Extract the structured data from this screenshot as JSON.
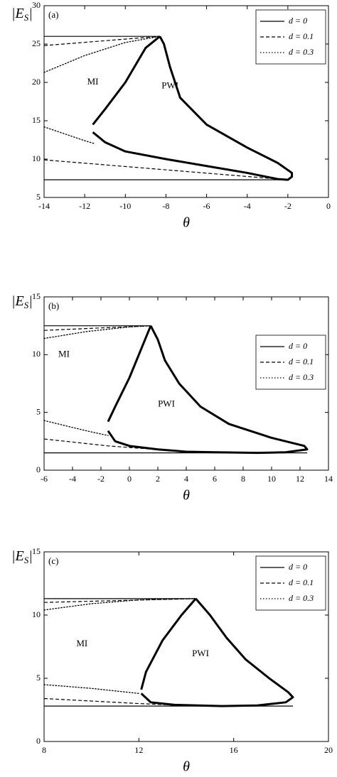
{
  "chart_data": [
    {
      "type": "line",
      "panel_label": "(a)",
      "annotations": [
        "MI",
        "PWI"
      ],
      "x_label": "θ",
      "y_label": "|E",
      "y_label_sub": "S",
      "y_label_end": "|",
      "xlim": [
        -14,
        0
      ],
      "xticks": [
        -14,
        -12,
        -10,
        -8,
        -6,
        -4,
        -2,
        0
      ],
      "ylim": [
        5,
        30
      ],
      "yticks": [
        5,
        10,
        15,
        20,
        25,
        30
      ],
      "legend": "upper right",
      "series": [
        {
          "name": "d = 0",
          "color": "#000000",
          "line_style": "solid",
          "x": [
            -14,
            -8.3,
            null,
            -14,
            -2
          ],
          "values": [
            26,
            26,
            null,
            7.3,
            7.3
          ]
        },
        {
          "name": "d = 0.1",
          "color": "#000000",
          "line_style": "dashed",
          "x": [
            -14,
            -8.3,
            null,
            -14,
            -2
          ],
          "values": [
            24.8,
            26,
            null,
            9.9,
            7.3
          ]
        },
        {
          "name": "d = 0.3",
          "color": "#000000",
          "line_style": "dotted",
          "x": [
            -14,
            -12,
            -10,
            -8.3,
            null,
            -14,
            -12,
            -11.5
          ],
          "values": [
            21.3,
            23.5,
            25.2,
            26,
            null,
            14.2,
            12.4,
            12
          ]
        },
        {
          "color": "#000000",
          "line_style": "bold",
          "x": [
            -8.3,
            -9,
            -10,
            -11,
            -11.6,
            null,
            -11.6,
            -11,
            -10,
            -8,
            -6,
            -4,
            -2.5,
            -2,
            -1.8,
            -1.8,
            -2.5,
            -4,
            -6,
            -7.3,
            -7.8,
            -8.1,
            -8.3
          ],
          "values": [
            26,
            24.5,
            20,
            16.5,
            14.5,
            null,
            13.5,
            12.2,
            11,
            10,
            9.1,
            8.2,
            7.4,
            7.3,
            7.7,
            8.2,
            9.5,
            11.5,
            14.5,
            18,
            22,
            25,
            26
          ]
        }
      ]
    },
    {
      "type": "line",
      "panel_label": "(b)",
      "annotations": [
        "MI",
        "PWI"
      ],
      "x_label": "θ",
      "y_label": "|E",
      "y_label_sub": "S",
      "y_label_end": "|",
      "xlim": [
        -6,
        14
      ],
      "xticks": [
        -6,
        -4,
        -2,
        0,
        2,
        4,
        6,
        8,
        10,
        12,
        14
      ],
      "ylim": [
        0,
        15
      ],
      "yticks": [
        0,
        5,
        10,
        15
      ],
      "legend": "center right",
      "series": [
        {
          "name": "d = 0",
          "color": "#000000",
          "line_style": "solid",
          "x": [
            -6,
            1.5,
            null,
            -6,
            12.5
          ],
          "values": [
            12.5,
            12.5,
            null,
            1.5,
            1.5
          ]
        },
        {
          "name": "d = 0.1",
          "color": "#000000",
          "line_style": "dashed",
          "x": [
            -6,
            1.5,
            null,
            -6,
            -1.5,
            4
          ],
          "values": [
            12.1,
            12.5,
            null,
            2.7,
            2.1,
            1.6
          ]
        },
        {
          "name": "d = 0.3",
          "color": "#000000",
          "line_style": "dotted",
          "x": [
            -6,
            -3,
            0,
            1.5,
            null,
            -6,
            -3,
            -1.5
          ],
          "values": [
            11.4,
            12,
            12.4,
            12.5,
            null,
            4.3,
            3.4,
            3
          ]
        },
        {
          "color": "#000000",
          "line_style": "bold",
          "x": [
            1.5,
            1,
            0,
            -1,
            -1.5,
            null,
            -1.5,
            -1,
            0,
            2,
            4,
            6,
            9,
            11,
            12.5,
            12.3,
            10,
            7,
            5,
            3.5,
            2.5,
            2,
            1.5
          ],
          "values": [
            12.5,
            11,
            8,
            5.5,
            4.2,
            null,
            3.4,
            2.5,
            2.1,
            1.8,
            1.6,
            1.55,
            1.5,
            1.55,
            1.8,
            2.1,
            2.8,
            4,
            5.5,
            7.5,
            9.5,
            11.3,
            12.5
          ]
        }
      ]
    },
    {
      "type": "line",
      "panel_label": "(c)",
      "annotations": [
        "MI",
        "PWI"
      ],
      "x_label": "θ",
      "y_label": "|E",
      "y_label_sub": "S",
      "y_label_end": "|",
      "xlim": [
        8,
        20
      ],
      "xticks": [
        8,
        12,
        16,
        20
      ],
      "ylim": [
        0,
        15
      ],
      "yticks": [
        0,
        5,
        10,
        15
      ],
      "legend": "upper right",
      "series": [
        {
          "name": "d = 0",
          "color": "#000000",
          "line_style": "solid",
          "x": [
            8,
            14.4,
            null,
            8,
            18.5
          ],
          "values": [
            11.3,
            11.3,
            null,
            2.8,
            2.8
          ]
        },
        {
          "name": "d = 0.1",
          "color": "#000000",
          "line_style": "dashed",
          "x": [
            8,
            14.4,
            null,
            8,
            12,
            14
          ],
          "values": [
            11,
            11.3,
            null,
            3.4,
            3,
            2.85
          ]
        },
        {
          "name": "d = 0.3",
          "color": "#000000",
          "line_style": "dotted",
          "x": [
            8,
            10,
            12,
            14.4,
            null,
            8,
            10,
            12
          ],
          "values": [
            10.4,
            10.9,
            11.2,
            11.3,
            null,
            4.5,
            4.2,
            3.8
          ]
        },
        {
          "color": "#000000",
          "line_style": "bold",
          "x": [
            14.4,
            13.8,
            13,
            12.3,
            12.1,
            null,
            12.1,
            12.5,
            13.5,
            15.5,
            17,
            18.2,
            18.5,
            18.3,
            17.5,
            16.5,
            15.7,
            15,
            14.4
          ],
          "values": [
            11.3,
            10,
            8,
            5.5,
            4.1,
            null,
            3.8,
            3.1,
            2.9,
            2.8,
            2.85,
            3.1,
            3.5,
            3.9,
            5,
            6.5,
            8.2,
            10,
            11.3
          ]
        }
      ]
    }
  ]
}
